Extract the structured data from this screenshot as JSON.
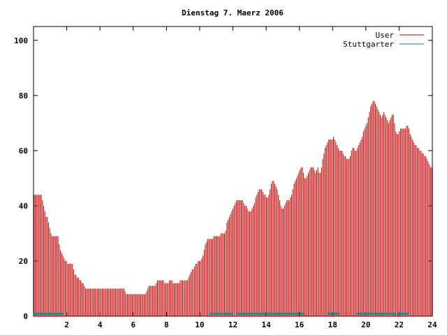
{
  "chart_data": {
    "type": "bar",
    "style": "impulses",
    "title": "Dienstag 7. Maerz 2006",
    "xlabel": "",
    "ylabel": "",
    "xlim": [
      0,
      24
    ],
    "ylim": [
      0,
      105
    ],
    "xticks": [
      2,
      4,
      6,
      8,
      10,
      12,
      14,
      16,
      18,
      20,
      22,
      24
    ],
    "xtick_labels": [
      "2",
      "4",
      "6",
      "8",
      "10",
      "12",
      "14",
      "16",
      "18",
      "20",
      "22",
      "24"
    ],
    "yticks": [
      0,
      20,
      40,
      60,
      80,
      100
    ],
    "ytick_labels": [
      "0",
      "20",
      "40",
      "60",
      "80",
      "100"
    ],
    "grid": false,
    "legend_position": "top-right",
    "series": [
      {
        "name": "User",
        "color": "#cc0000",
        "values": [
          44,
          44,
          44,
          44,
          44,
          44,
          44,
          42,
          40,
          38,
          36,
          36,
          34,
          32,
          30,
          29,
          29,
          29,
          29,
          29,
          29,
          26,
          24,
          23,
          22,
          21,
          20,
          20,
          19,
          19,
          19,
          19,
          19,
          17,
          15,
          15,
          14,
          14,
          13,
          13,
          12,
          12,
          11,
          10,
          10,
          10,
          10,
          10,
          10,
          10,
          10,
          10,
          10,
          10,
          10,
          10,
          10,
          10,
          10,
          10,
          10,
          10,
          10,
          10,
          10,
          10,
          10,
          10,
          10,
          10,
          10,
          10,
          10,
          10,
          10,
          10,
          9,
          8,
          8,
          8,
          8,
          8,
          8,
          8,
          8,
          8,
          8,
          8,
          8,
          8,
          8,
          8,
          8,
          8,
          9,
          10,
          11,
          11,
          11,
          11,
          11,
          11,
          12,
          13,
          13,
          13,
          13,
          13,
          13,
          12,
          12,
          12,
          12,
          13,
          13,
          13,
          12,
          12,
          12,
          12,
          12,
          12,
          13,
          13,
          13,
          13,
          13,
          13,
          13,
          14,
          15,
          16,
          17,
          17,
          18,
          19,
          19,
          20,
          20,
          20,
          21,
          22,
          24,
          26,
          27,
          28,
          28,
          28,
          28,
          28,
          29,
          29,
          29,
          29,
          29,
          29,
          30,
          30,
          30,
          30,
          31,
          34,
          35,
          36,
          37,
          38,
          39,
          40,
          41,
          42,
          42,
          42,
          42,
          42,
          42,
          41,
          40,
          40,
          39,
          38,
          38,
          38,
          39,
          40,
          41,
          43,
          44,
          45,
          46,
          46,
          46,
          45,
          44,
          44,
          43,
          43,
          44,
          46,
          48,
          49,
          49,
          48,
          47,
          46,
          44,
          42,
          40,
          39,
          39,
          40,
          41,
          42,
          42,
          42,
          43,
          44,
          46,
          48,
          49,
          50,
          51,
          52,
          53,
          54,
          54,
          52,
          50,
          50,
          51,
          52,
          53,
          54,
          54,
          54,
          53,
          52,
          53,
          54,
          52,
          52,
          54,
          57,
          59,
          61,
          62,
          63,
          64,
          64,
          64,
          64,
          65,
          64,
          63,
          62,
          61,
          60,
          60,
          60,
          59,
          58,
          58,
          57,
          57,
          57,
          58,
          60,
          61,
          61,
          60,
          60,
          61,
          62,
          63,
          64,
          65,
          67,
          68,
          69,
          70,
          72,
          74,
          76,
          77,
          78,
          78,
          77,
          76,
          75,
          74,
          73,
          72,
          73,
          74,
          73,
          72,
          71,
          70,
          71,
          72,
          73,
          73,
          70,
          67,
          66,
          66,
          67,
          68,
          68,
          68,
          68,
          68,
          69,
          69,
          68,
          66,
          65,
          64,
          63,
          62,
          62,
          61,
          61,
          60,
          60,
          59,
          59,
          58,
          58,
          57,
          56,
          55,
          54,
          54
        ]
      },
      {
        "name": "Stuttgarter",
        "color": "#008888",
        "segments": [
          [
            0,
            1.8
          ],
          [
            10.6,
            12.0
          ],
          [
            12.2,
            16.3
          ],
          [
            17.7,
            18.4
          ],
          [
            19.4,
            21.8
          ],
          [
            21.9,
            22.6
          ]
        ],
        "value": 1
      }
    ]
  }
}
